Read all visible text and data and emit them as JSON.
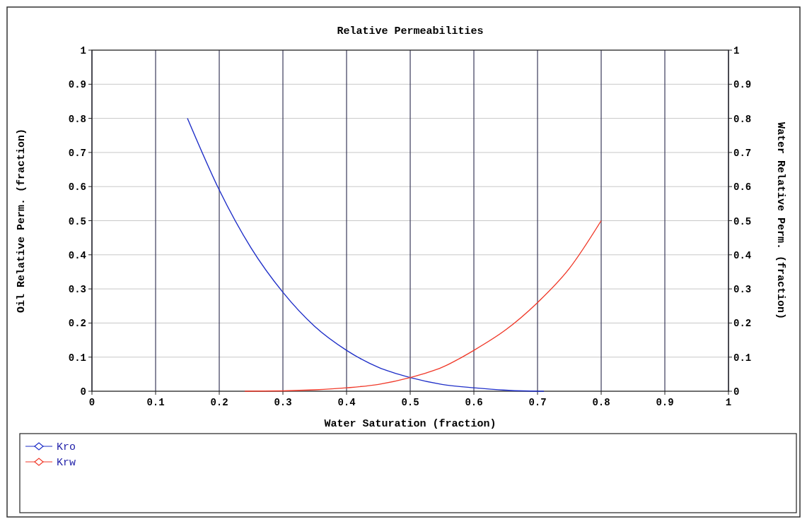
{
  "chart_data": {
    "type": "line",
    "title": "Relative Permeabilities",
    "xlabel": "Water Saturation (fraction)",
    "ylabel": "Oil Relative Perm. (fraction)",
    "y2label": "Water Relative Perm. (fraction)",
    "xlim": [
      0,
      1
    ],
    "xticks": [
      0,
      0.1,
      0.2,
      0.3,
      0.4,
      0.5,
      0.6,
      0.7,
      0.8,
      0.9,
      1
    ],
    "ylim": [
      0,
      1
    ],
    "yticks": [
      0,
      0.1,
      0.2,
      0.3,
      0.4,
      0.5,
      0.6,
      0.7,
      0.8,
      0.9,
      1
    ],
    "y2lim": [
      0,
      1
    ],
    "y2ticks": [
      0,
      0.1,
      0.2,
      0.3,
      0.4,
      0.5,
      0.6,
      0.7,
      0.8,
      0.9,
      1
    ],
    "grid": true,
    "legend": "bottom",
    "series": [
      {
        "name": "Kro",
        "color": "#1f2fc8",
        "x": [
          0.15,
          0.2,
          0.25,
          0.3,
          0.35,
          0.4,
          0.45,
          0.5,
          0.55,
          0.6,
          0.65,
          0.7,
          0.71
        ],
        "values": [
          0.8,
          0.59,
          0.42,
          0.29,
          0.19,
          0.12,
          0.07,
          0.04,
          0.02,
          0.01,
          0.003,
          0,
          0
        ]
      },
      {
        "name": "Krw",
        "color": "#f03a2a",
        "x": [
          0.24,
          0.3,
          0.35,
          0.4,
          0.45,
          0.5,
          0.55,
          0.6,
          0.65,
          0.7,
          0.75,
          0.8
        ],
        "values": [
          0,
          0.001,
          0.004,
          0.01,
          0.02,
          0.04,
          0.07,
          0.12,
          0.18,
          0.26,
          0.36,
          0.5
        ]
      }
    ]
  }
}
